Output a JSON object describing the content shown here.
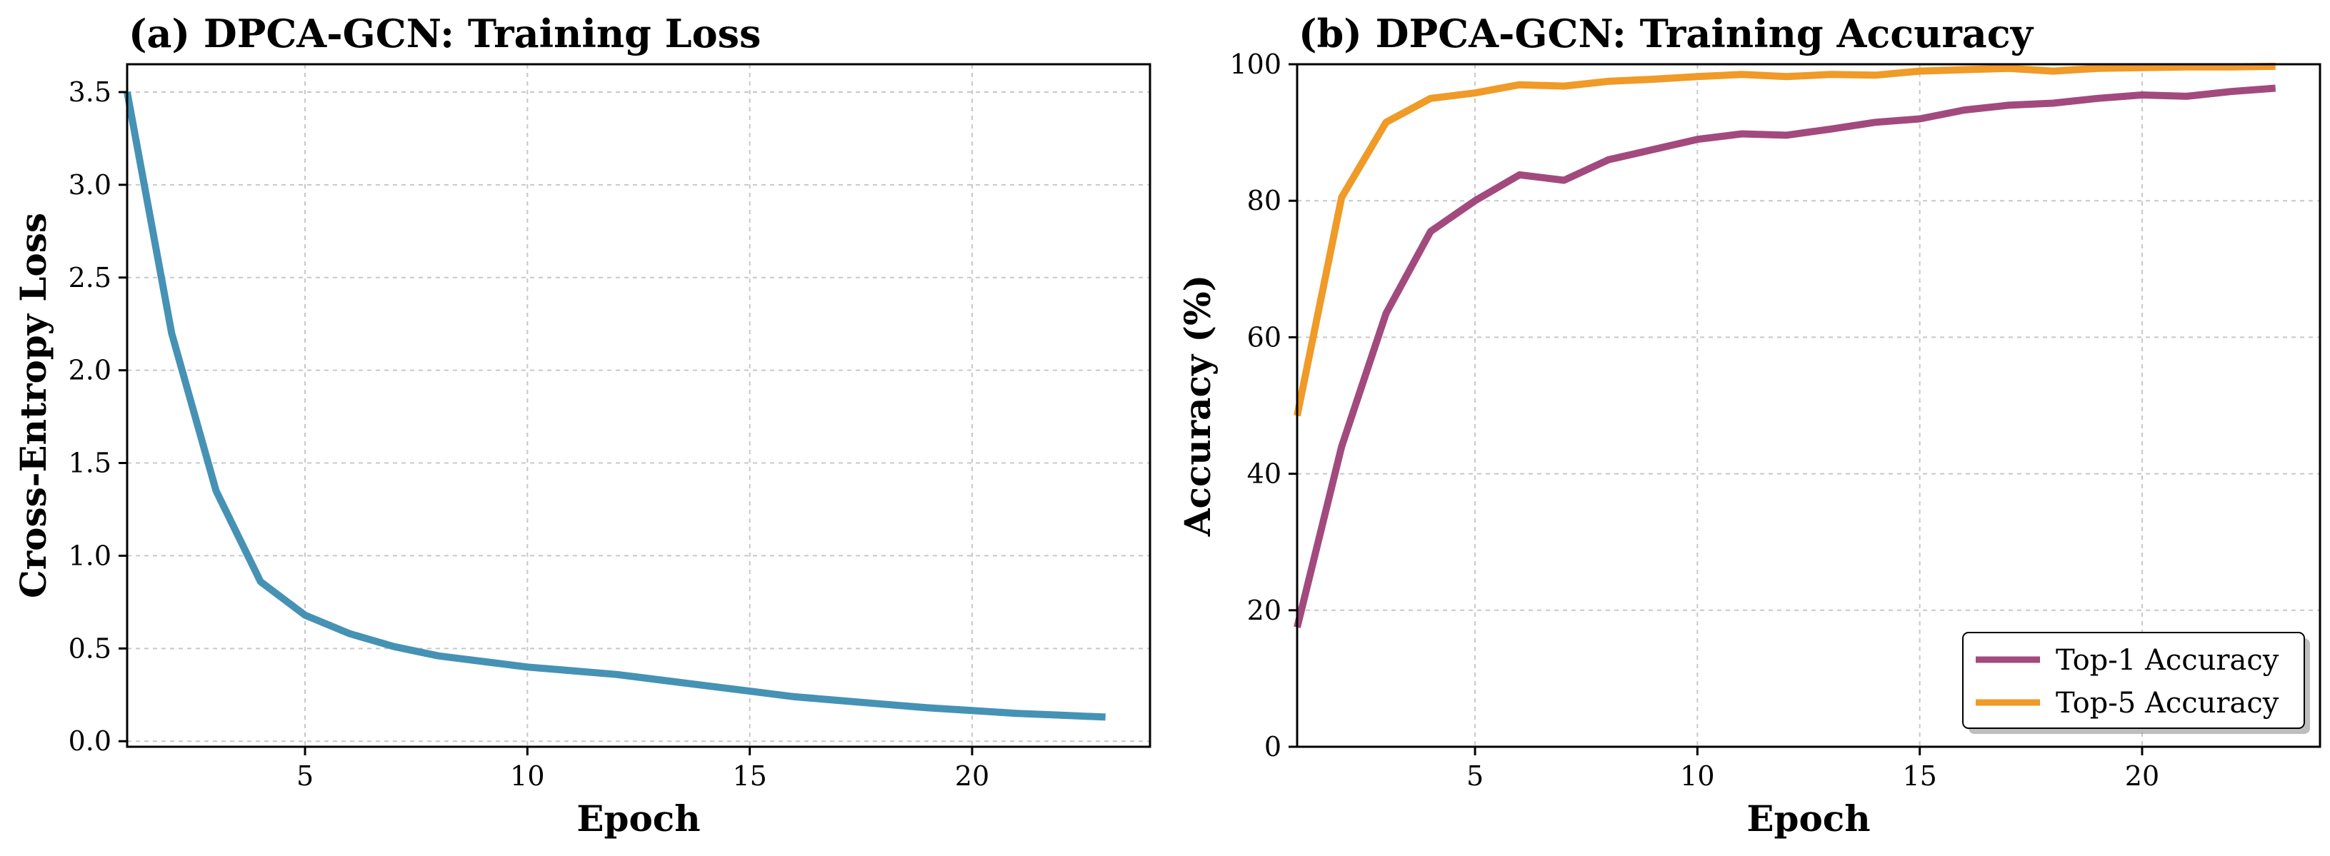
{
  "chart_data": [
    {
      "type": "line",
      "title": "(a) DPCA-GCN: Training Loss",
      "xlabel": "Epoch",
      "ylabel": "Cross-Entropy Loss",
      "xlim": [
        1,
        24
      ],
      "ylim": [
        -0.03,
        3.65
      ],
      "xticks": [
        5,
        10,
        15,
        20
      ],
      "yticks": [
        0.0,
        0.5,
        1.0,
        1.5,
        2.0,
        2.5,
        3.0,
        3.5
      ],
      "ytick_labels": [
        "0.0",
        "0.5",
        "1.0",
        "1.5",
        "2.0",
        "2.5",
        "3.0",
        "3.5"
      ],
      "grid": true,
      "series": [
        {
          "name": "Training Loss",
          "color": "#4592B5",
          "x": [
            1,
            2,
            3,
            4,
            5,
            6,
            7,
            8,
            9,
            10,
            11,
            12,
            13,
            14,
            15,
            16,
            17,
            18,
            19,
            20,
            21,
            22,
            23
          ],
          "values": [
            3.5,
            2.2,
            1.35,
            0.86,
            0.68,
            0.58,
            0.51,
            0.46,
            0.43,
            0.4,
            0.38,
            0.36,
            0.33,
            0.3,
            0.27,
            0.24,
            0.22,
            0.2,
            0.18,
            0.165,
            0.15,
            0.14,
            0.13
          ]
        }
      ]
    },
    {
      "type": "line",
      "title": "(b) DPCA-GCN: Training Accuracy",
      "xlabel": "Epoch",
      "ylabel": "Accuracy (%)",
      "xlim": [
        1,
        24
      ],
      "ylim": [
        0,
        100
      ],
      "xticks": [
        5,
        10,
        15,
        20
      ],
      "yticks": [
        0,
        20,
        40,
        60,
        80,
        100
      ],
      "ytick_labels": [
        "0",
        "20",
        "40",
        "60",
        "80",
        "100"
      ],
      "grid": true,
      "legend_position": "bottom-right",
      "series": [
        {
          "name": "Top-1 Accuracy",
          "color": "#A24A7E",
          "x": [
            1,
            2,
            3,
            4,
            5,
            6,
            7,
            8,
            9,
            10,
            11,
            12,
            13,
            14,
            15,
            16,
            17,
            18,
            19,
            20,
            21,
            22,
            23
          ],
          "values": [
            17.5,
            44,
            63.5,
            75.5,
            80,
            83.8,
            83,
            86,
            87.5,
            89,
            89.8,
            89.6,
            90.5,
            91.5,
            92,
            93.3,
            94,
            94.3,
            95,
            95.5,
            95.3,
            96,
            96.5
          ]
        },
        {
          "name": "Top-5 Accuracy",
          "color": "#F09A28",
          "x": [
            1,
            2,
            3,
            4,
            5,
            6,
            7,
            8,
            9,
            10,
            11,
            12,
            13,
            14,
            15,
            16,
            17,
            18,
            19,
            20,
            21,
            22,
            23
          ],
          "values": [
            48.5,
            80.5,
            91.5,
            95,
            95.8,
            97,
            96.8,
            97.5,
            97.8,
            98.2,
            98.5,
            98.2,
            98.5,
            98.4,
            99,
            99.2,
            99.4,
            99,
            99.4,
            99.5,
            99.6,
            99.6,
            99.7
          ]
        }
      ]
    }
  ]
}
